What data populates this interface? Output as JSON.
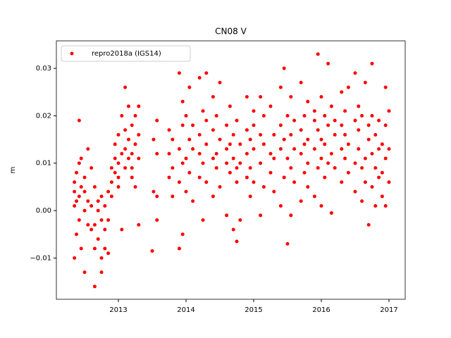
{
  "chart_data": {
    "type": "scatter",
    "title": "CN08 V",
    "y_label": "m",
    "xlim": [
      2012.083,
      2017.24
    ],
    "xticks": [
      2013,
      2014,
      2015,
      2016,
      2017
    ],
    "ylim": [
      -0.0187,
      0.0358
    ],
    "yticks": [
      {
        "value": -0.01,
        "label": "−0.01"
      },
      {
        "value": 0,
        "label": "0.00"
      },
      {
        "value": 0.01,
        "label": "0.01"
      },
      {
        "value": 0.02,
        "label": "0.02"
      },
      {
        "value": 0.03,
        "label": "0.03"
      }
    ],
    "legend": "upper left",
    "grid": false,
    "series": [
      {
        "name": "repro2018a (IGS14)",
        "color": "#ff0000",
        "x": [
          2012.35,
          2012.35,
          2012.35,
          2012.35,
          2012.38,
          2012.38,
          2012.38,
          2012.42,
          2012.42,
          2012.42,
          2012.42,
          2012.45,
          2012.45,
          2012.45,
          2012.5,
          2012.5,
          2012.5,
          2012.5,
          2012.55,
          2012.55,
          2012.55,
          2012.6,
          2012.6,
          2012.6,
          2012.65,
          2012.65,
          2012.65,
          2012.65,
          2012.7,
          2012.7,
          2012.7,
          2012.75,
          2012.75,
          2012.75,
          2012.75,
          2012.8,
          2012.8,
          2012.8,
          2012.85,
          2012.85,
          2012.85,
          2012.9,
          2012.9,
          2012.9,
          2012.95,
          2012.95,
          2012.95,
          2013.0,
          2013.0,
          2013.0,
          2013.0,
          2013.05,
          2013.05,
          2013.05,
          2013.1,
          2013.1,
          2013.1,
          2013.1,
          2013.15,
          2013.15,
          2013.15,
          2013.2,
          2013.2,
          2013.2,
          2013.2,
          2013.25,
          2013.25,
          2013.25,
          2013.3,
          2013.3,
          2013.3,
          2013.3,
          2013.5,
          2013.52,
          2013.52,
          2013.57,
          2013.57,
          2013.57,
          2013.57,
          2013.75,
          2013.75,
          2013.75,
          2013.8,
          2013.8,
          2013.8,
          2013.9,
          2013.9,
          2013.9,
          2013.9,
          2013.95,
          2013.95,
          2013.95,
          2013.95,
          2014.0,
          2014.0,
          2014.0,
          2014.05,
          2014.05,
          2014.05,
          2014.1,
          2014.1,
          2014.1,
          2014.2,
          2014.2,
          2014.2,
          2014.2,
          2014.25,
          2014.25,
          2014.25,
          2014.3,
          2014.3,
          2014.3,
          2014.3,
          2014.4,
          2014.4,
          2014.4,
          2014.4,
          2014.45,
          2014.45,
          2014.45,
          2014.5,
          2014.5,
          2014.5,
          2014.6,
          2014.6,
          2014.6,
          2014.6,
          2014.65,
          2014.65,
          2014.65,
          2014.7,
          2014.7,
          2014.7,
          2014.75,
          2014.75,
          2014.75,
          2014.75,
          2014.8,
          2014.8,
          2014.8,
          2014.9,
          2014.9,
          2014.9,
          2014.9,
          2014.95,
          2014.95,
          2014.95,
          2015.0,
          2015.0,
          2015.0,
          2015.0,
          2015.1,
          2015.1,
          2015.1,
          2015.1,
          2015.15,
          2015.15,
          2015.15,
          2015.25,
          2015.25,
          2015.25,
          2015.3,
          2015.3,
          2015.3,
          2015.4,
          2015.4,
          2015.4,
          2015.4,
          2015.45,
          2015.45,
          2015.45,
          2015.5,
          2015.5,
          2015.5,
          2015.55,
          2015.55,
          2015.55,
          2015.55,
          2015.6,
          2015.6,
          2015.6,
          2015.7,
          2015.7,
          2015.7,
          2015.7,
          2015.75,
          2015.75,
          2015.75,
          2015.8,
          2015.8,
          2015.8,
          2015.8,
          2015.9,
          2015.9,
          2015.9,
          2015.9,
          2015.95,
          2015.95,
          2015.95,
          2016.0,
          2016.0,
          2016.0,
          2016.0,
          2016.05,
          2016.05,
          2016.05,
          2016.1,
          2016.1,
          2016.1,
          2016.15,
          2016.15,
          2016.15,
          2016.2,
          2016.2,
          2016.2,
          2016.3,
          2016.3,
          2016.3,
          2016.3,
          2016.35,
          2016.35,
          2016.35,
          2016.4,
          2016.4,
          2016.4,
          2016.5,
          2016.5,
          2016.5,
          2016.5,
          2016.55,
          2016.55,
          2016.55,
          2016.6,
          2016.6,
          2016.6,
          2016.65,
          2016.65,
          2016.65,
          2016.7,
          2016.7,
          2016.7,
          2016.75,
          2016.75,
          2016.75,
          2016.75,
          2016.8,
          2016.8,
          2016.8,
          2016.85,
          2016.85,
          2016.85,
          2016.9,
          2016.9,
          2016.9,
          2016.95,
          2016.95,
          2016.95,
          2016.95,
          2017.0,
          2017.0,
          2017.0
        ],
        "values": [
          0.001,
          -0.01,
          0.004,
          0.006,
          -0.005,
          0.008,
          0.002,
          0.019,
          0.01,
          0.003,
          -0.002,
          0.011,
          0.005,
          -0.008,
          0.007,
          0.0,
          -0.013,
          0.004,
          0.013,
          0.002,
          -0.003,
          0.009,
          -0.004,
          0.001,
          0.005,
          -0.008,
          -0.016,
          -0.003,
          0.002,
          -0.006,
          0.0,
          -0.002,
          -0.01,
          -0.013,
          0.003,
          -0.004,
          -0.008,
          0.001,
          0.004,
          -0.009,
          -0.002,
          0.009,
          0.003,
          0.006,
          0.014,
          0.008,
          0.011,
          0.016,
          0.01,
          0.005,
          0.007,
          0.012,
          0.02,
          -0.004,
          0.026,
          0.017,
          0.009,
          0.013,
          0.022,
          0.015,
          0.011,
          0.018,
          0.012,
          0.007,
          0.009,
          0.02,
          0.014,
          0.005,
          0.016,
          0.011,
          -0.003,
          0.022,
          -0.0085,
          0.015,
          0.004,
          0.019,
          0.012,
          -0.002,
          0.003,
          0.012,
          0.007,
          0.017,
          0.009,
          0.003,
          0.015,
          0.029,
          0.013,
          0.006,
          -0.008,
          0.01,
          0.018,
          -0.005,
          0.023,
          0.02,
          0.011,
          0.004,
          0.026,
          0.008,
          0.015,
          0.013,
          0.002,
          0.018,
          0.016,
          0.007,
          0.012,
          0.028,
          0.01,
          0.021,
          -0.002,
          0.029,
          0.014,
          0.006,
          0.019,
          0.017,
          0.011,
          0.024,
          0.003,
          0.012,
          0.009,
          0.02,
          0.027,
          0.015,
          0.005,
          0.013,
          0.018,
          0.01,
          -0.001,
          0.008,
          0.022,
          0.014,
          -0.004,
          0.011,
          0.016,
          -0.0065,
          0.006,
          0.019,
          0.009,
          0.014,
          -0.002,
          0.01,
          0.017,
          0.007,
          0.024,
          0.012,
          0.015,
          0.003,
          0.009,
          0.021,
          0.013,
          0.018,
          0.006,
          0.024,
          0.01,
          -0.001,
          0.016,
          0.014,
          0.005,
          0.02,
          0.022,
          0.012,
          0.008,
          0.016,
          0.004,
          0.011,
          0.026,
          0.013,
          0.018,
          0.001,
          0.03,
          0.015,
          0.007,
          -0.007,
          0.011,
          0.02,
          0.024,
          0.009,
          0.016,
          -0.001,
          0.019,
          0.006,
          0.013,
          0.027,
          0.012,
          0.002,
          0.017,
          0.02,
          0.008,
          0.014,
          0.023,
          0.015,
          0.005,
          0.01,
          0.019,
          0.013,
          0.021,
          0.003,
          0.033,
          0.017,
          0.009,
          0.024,
          0.015,
          0.011,
          0.001,
          0.02,
          0.014,
          0.007,
          0.031,
          0.018,
          0.01,
          0.022,
          0.012,
          -0.0005,
          0.016,
          0.009,
          0.019,
          0.025,
          0.013,
          0.006,
          0.018,
          0.021,
          0.011,
          0.016,
          0.026,
          0.014,
          0.008,
          0.029,
          0.019,
          0.01,
          0.004,
          0.022,
          0.013,
          0.017,
          0.002,
          0.009,
          0.02,
          0.027,
          0.011,
          0.006,
          -0.003,
          0.015,
          0.018,
          0.031,
          0.02,
          0.012,
          0.005,
          0.016,
          0.009,
          0.001,
          0.013,
          0.007,
          0.019,
          0.014,
          0.008,
          0.003,
          0.026,
          0.018,
          0.011,
          0.001,
          0.021,
          0.013,
          0.006
        ]
      }
    ]
  }
}
